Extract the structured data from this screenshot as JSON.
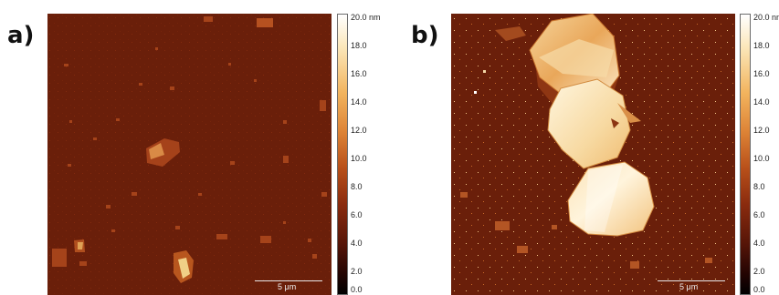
{
  "panels": [
    {
      "label": "a)",
      "scale_bar": "5 μm",
      "colorbar_ticks": [
        "20.0 nm",
        "18.0",
        "16.0",
        "14.0",
        "12.0",
        "10.0",
        "8.0",
        "6.0",
        "4.0",
        "2.0",
        "0.0"
      ]
    },
    {
      "label": "b)",
      "scale_bar": "5 μm",
      "colorbar_ticks": [
        "20.0 nm",
        "18.0",
        "16.0",
        "14.0",
        "12.0",
        "10.0",
        "8.0",
        "6.0",
        "4.0",
        "2.0",
        "0.0"
      ]
    }
  ],
  "colors": {
    "substrate": "#6a1f0a",
    "flake_low": "#a8461a",
    "flake_mid": "#e2953e",
    "flake_high": "#fff3d8"
  }
}
